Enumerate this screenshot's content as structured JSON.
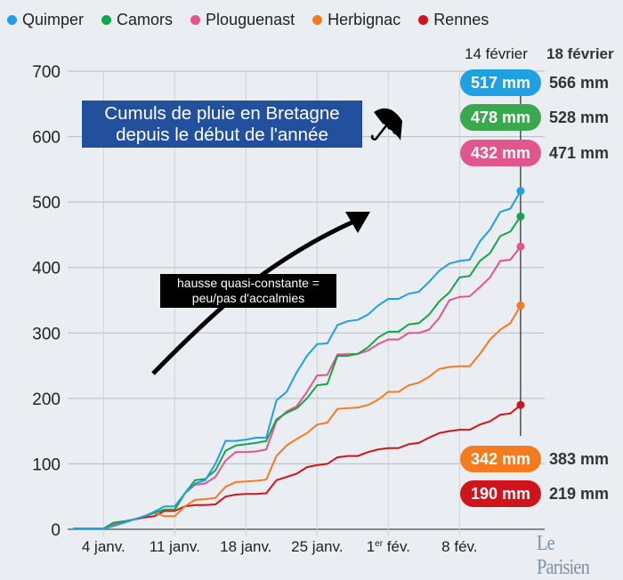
{
  "chart_data": {
    "type": "line",
    "title": "Cumuls de pluie en Bretagne depuis le début de l'année",
    "annotation": "hausse quasi-constante = peu/pas d'accalmies",
    "annotation_lines": [
      "hausse quasi-constante =",
      "peu/pas d'accalmies"
    ],
    "title_lines": [
      "Cumuls de pluie en Bretagne",
      "depuis le début de l'année"
    ],
    "xlabel": "",
    "ylabel": "",
    "x_range": [
      "1 janv.",
      "14 févr."
    ],
    "ylim": [
      0,
      700
    ],
    "yticks": [
      0,
      100,
      200,
      300,
      400,
      500,
      600,
      700
    ],
    "xticks": [
      {
        "day": 3,
        "label": "4 janv.",
        "sup": ""
      },
      {
        "day": 10,
        "label": "11 janv.",
        "sup": ""
      },
      {
        "day": 17,
        "label": "18 janv.",
        "sup": ""
      },
      {
        "day": 24,
        "label": "25 janv.",
        "sup": ""
      },
      {
        "day": 31,
        "label": "1",
        "sup": "er",
        "after": " fév."
      },
      {
        "day": 38,
        "label": "8 fév.",
        "sup": ""
      }
    ],
    "grid": true,
    "legend": "top",
    "series": [
      {
        "name": "Quimper",
        "color": "#1fa0e3",
        "values": [
          1,
          1,
          1,
          1,
          5,
          10,
          15,
          20,
          27,
          35,
          35,
          55,
          70,
          75,
          100,
          135,
          135,
          137,
          140,
          140,
          197,
          210,
          240,
          265,
          283,
          284,
          312,
          318,
          320,
          328,
          342,
          352,
          352,
          360,
          363,
          378,
          395,
          406,
          410,
          412,
          440,
          458,
          485,
          490,
          517
        ]
      },
      {
        "name": "Camors",
        "color": "#14a64a",
        "values": [
          1,
          1,
          1,
          1,
          10,
          12,
          15,
          20,
          25,
          30,
          30,
          55,
          75,
          77,
          90,
          120,
          128,
          130,
          132,
          135,
          168,
          178,
          185,
          200,
          220,
          222,
          265,
          265,
          268,
          278,
          293,
          302,
          302,
          313,
          315,
          328,
          348,
          362,
          385,
          387,
          410,
          422,
          448,
          455,
          478
        ]
      },
      {
        "name": "Plouguenast",
        "color": "#e2568f",
        "values": [
          1,
          1,
          1,
          1,
          8,
          12,
          15,
          20,
          25,
          30,
          30,
          55,
          68,
          70,
          80,
          105,
          118,
          118,
          119,
          122,
          165,
          180,
          188,
          210,
          235,
          236,
          267,
          268,
          268,
          273,
          283,
          290,
          290,
          300,
          300,
          305,
          323,
          350,
          355,
          356,
          370,
          385,
          410,
          412,
          432
        ]
      },
      {
        "name": "Herbignac",
        "color": "#f47b20",
        "values": [
          1,
          1,
          1,
          1,
          8,
          10,
          15,
          20,
          25,
          20,
          20,
          35,
          45,
          46,
          48,
          65,
          72,
          73,
          74,
          76,
          112,
          128,
          138,
          147,
          160,
          163,
          184,
          185,
          186,
          190,
          198,
          210,
          210,
          220,
          224,
          233,
          245,
          248,
          249,
          249,
          268,
          290,
          305,
          315,
          342
        ]
      },
      {
        "name": "Rennes",
        "color": "#d0141e",
        "values": [
          1,
          1,
          1,
          1,
          10,
          12,
          15,
          18,
          20,
          28,
          28,
          35,
          37,
          37,
          38,
          50,
          53,
          54,
          54,
          55,
          75,
          80,
          85,
          95,
          98,
          100,
          110,
          112,
          112,
          118,
          122,
          124,
          124,
          130,
          132,
          140,
          147,
          150,
          152,
          152,
          160,
          165,
          175,
          177,
          190
        ]
      }
    ],
    "end_labels": {
      "header_current": "14 février",
      "header_later": "18 février",
      "rows": [
        {
          "series": "Quimper",
          "current": "517 mm",
          "later": "566 mm"
        },
        {
          "series": "Camors",
          "current": "478 mm",
          "later": "528 mm"
        },
        {
          "series": "Plouguenast",
          "current": "432 mm",
          "later": "471 mm"
        },
        {
          "series": "Herbignac",
          "current": "342 mm",
          "later": "383 mm"
        },
        {
          "series": "Rennes",
          "current": "190 mm",
          "later": "219 mm"
        }
      ]
    }
  },
  "icons": {
    "title_icon": "umbrella-icon"
  },
  "brand": {
    "logo": "Le Parisien"
  }
}
